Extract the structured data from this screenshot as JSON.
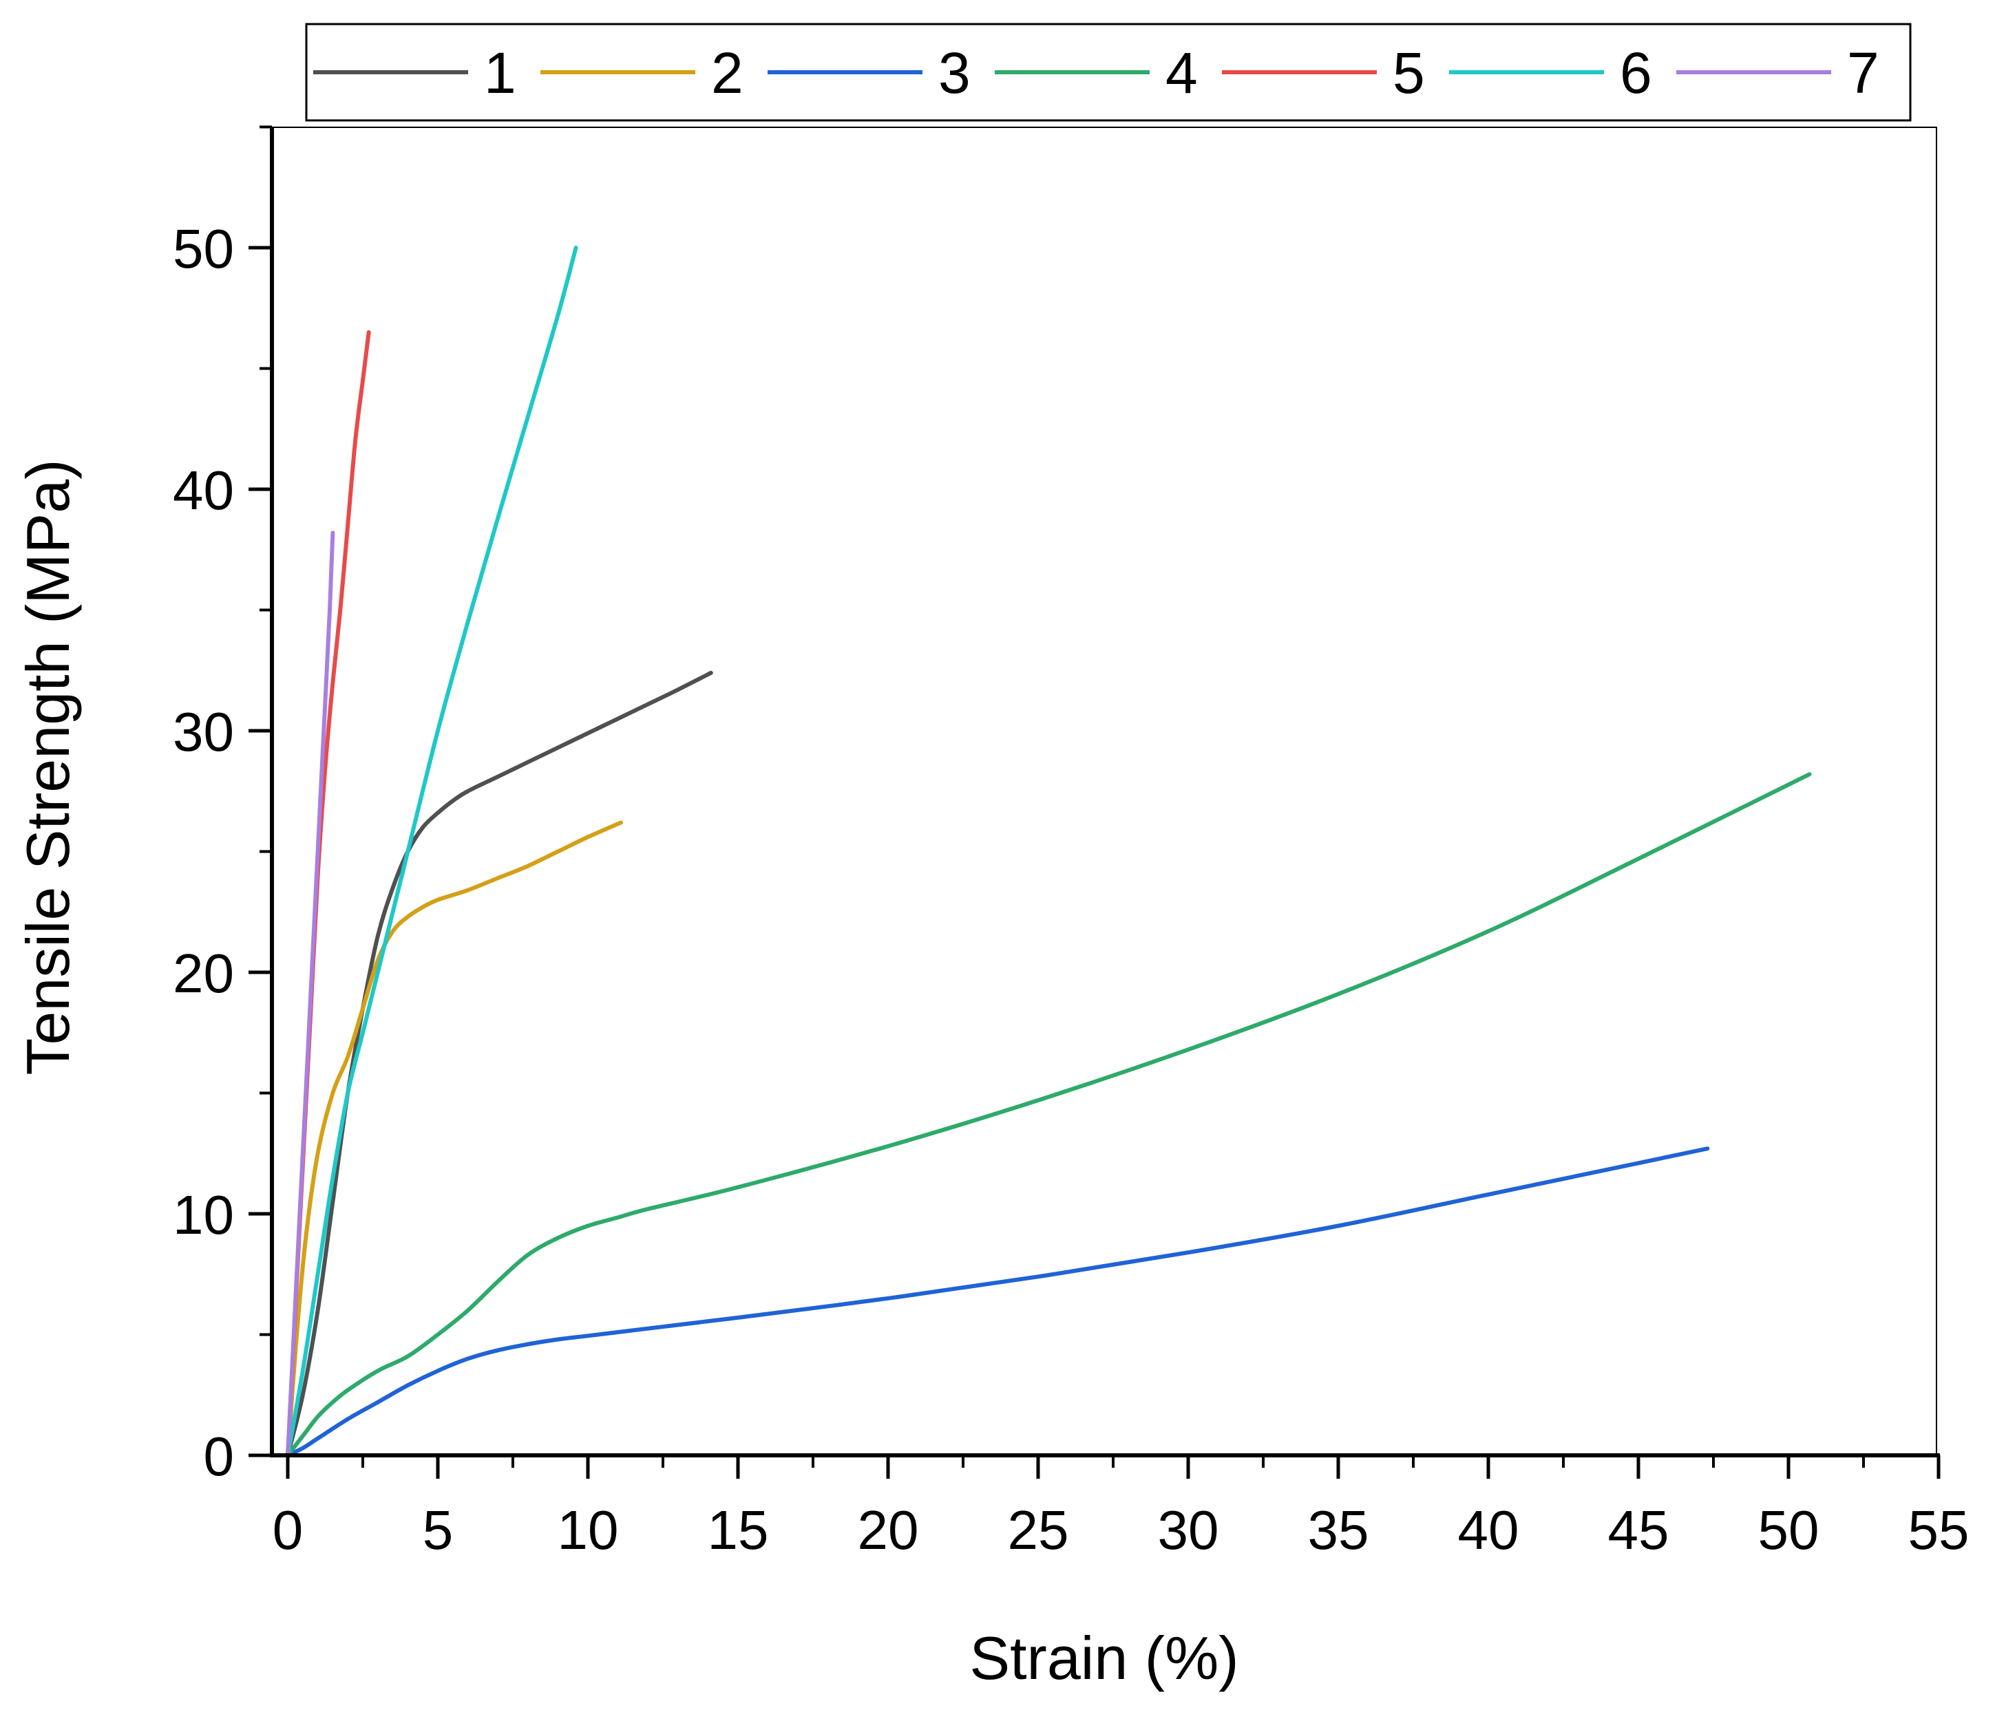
{
  "chart_data": {
    "type": "line",
    "title": "",
    "xlabel": "Strain (%)",
    "ylabel": "Tensile Strength (MPa)",
    "xlim": [
      -0.5,
      55
    ],
    "ylim": [
      0,
      55
    ],
    "xticks": [
      0,
      5,
      10,
      15,
      20,
      25,
      30,
      35,
      40,
      45,
      50,
      55
    ],
    "yticks": [
      0,
      10,
      20,
      30,
      40,
      50
    ],
    "grid": false,
    "legend_position": "top",
    "series": [
      {
        "name": "1",
        "color": "#505050",
        "x": [
          0,
          0.5,
          1,
          1.5,
          2,
          2.5,
          3,
          3.5,
          4,
          4.5,
          5,
          5.5,
          6,
          7,
          8,
          9,
          10,
          11,
          12,
          13,
          14.1
        ],
        "y": [
          0,
          2.5,
          6,
          10.5,
          15,
          18.5,
          21.5,
          23.5,
          25,
          26,
          26.6,
          27.1,
          27.5,
          28.1,
          28.7,
          29.3,
          29.9,
          30.5,
          31.1,
          31.7,
          32.4
        ]
      },
      {
        "name": "2",
        "color": "#D4A017",
        "x": [
          0,
          0.3,
          0.6,
          1,
          1.5,
          2,
          2.5,
          3,
          3.5,
          4,
          4.5,
          5,
          6,
          7,
          8,
          9,
          10,
          11.1
        ],
        "y": [
          0,
          5,
          9,
          12.5,
          15,
          16.5,
          18.5,
          20.5,
          21.7,
          22.3,
          22.7,
          23,
          23.4,
          23.9,
          24.4,
          25,
          25.6,
          26.2
        ]
      },
      {
        "name": "3",
        "color": "#1F63D6",
        "x": [
          0,
          0.5,
          1,
          2,
          3,
          4,
          5,
          6,
          7,
          8,
          9,
          10,
          12,
          15,
          20,
          25,
          30,
          35,
          40,
          45,
          47.3
        ],
        "y": [
          0,
          0.3,
          0.7,
          1.5,
          2.2,
          2.9,
          3.5,
          4,
          4.35,
          4.6,
          4.8,
          4.95,
          5.25,
          5.7,
          6.5,
          7.4,
          8.4,
          9.5,
          10.8,
          12.1,
          12.7
        ]
      },
      {
        "name": "4",
        "color": "#2EAA6A",
        "x": [
          0,
          0.5,
          1,
          1.5,
          2,
          3,
          4,
          5,
          6,
          7,
          8,
          9,
          10,
          11,
          12,
          15,
          20,
          25,
          30,
          35,
          40,
          45,
          50.7
        ],
        "y": [
          0,
          0.8,
          1.6,
          2.2,
          2.7,
          3.5,
          4.1,
          5,
          6,
          7.2,
          8.3,
          9,
          9.5,
          9.85,
          10.2,
          11.1,
          12.8,
          14.7,
          16.8,
          19.1,
          21.7,
          24.7,
          28.2
        ]
      },
      {
        "name": "5",
        "color": "#E84A4A",
        "x": [
          0,
          0.25,
          0.5,
          0.75,
          1,
          1.25,
          1.5,
          1.75,
          2,
          2.25,
          2.5,
          2.7
        ],
        "y": [
          0,
          6,
          12,
          18,
          24,
          28.5,
          32,
          35,
          38.5,
          42,
          44.5,
          46.5
        ]
      },
      {
        "name": "6",
        "color": "#1EC8C8",
        "x": [
          0,
          0.5,
          1,
          1.5,
          2,
          2.5,
          3,
          3.5,
          4,
          5,
          6,
          7,
          8,
          9,
          9.6
        ],
        "y": [
          0,
          3.5,
          7.5,
          11.5,
          15,
          17.5,
          20,
          22.5,
          25,
          30,
          34.5,
          38.8,
          43,
          47.2,
          50
        ]
      },
      {
        "name": "7",
        "color": "#A87FE0",
        "x": [
          0,
          0.2,
          0.4,
          0.6,
          0.8,
          1,
          1.2,
          1.4,
          1.5
        ],
        "y": [
          0,
          5,
          10,
          15,
          20,
          25,
          30,
          35,
          38.2
        ]
      }
    ]
  }
}
